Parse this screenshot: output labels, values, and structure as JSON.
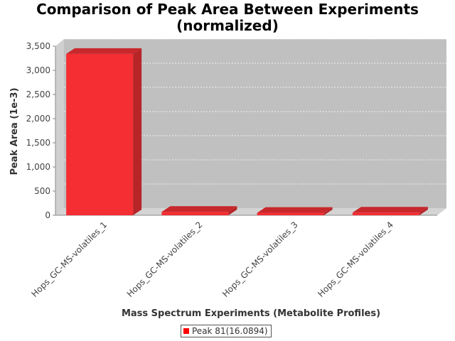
{
  "chart_data": {
    "type": "bar",
    "title_line1": "Comparison of Peak Area Between Experiments",
    "title_line2": "(normalized)",
    "xlabel": "Mass Spectrum Experiments (Metabolite Profiles)",
    "ylabel": "Peak Area (1e-3)",
    "categories": [
      "Hops_GC-MS-volatiles_1",
      "Hops_GC-MS-volatiles_2",
      "Hops_GC-MS-volatiles_3",
      "Hops_GC-MS-volatiles_4"
    ],
    "series": [
      {
        "name": "Peak 81(16.0894)",
        "values": [
          3340,
          70,
          50,
          55
        ]
      }
    ],
    "ylim": [
      0,
      3500
    ],
    "yticks": [
      0,
      500,
      1000,
      1500,
      2000,
      2500,
      3000,
      3500
    ],
    "ytick_labels": [
      "0",
      "500",
      "1,000",
      "1,500",
      "2,000",
      "2,500",
      "3,000",
      "3,500"
    ],
    "grid": true,
    "legend_position": "bottom-center",
    "colors": {
      "bar_front": "#f42e33",
      "bar_side": "#b72529",
      "bar_top": "#c8282c",
      "plot_background": "#c0c0c0",
      "wall_side": "#d0d0d0",
      "floor": "#d4d4d4",
      "legend_swatch": "#ff0000"
    }
  }
}
